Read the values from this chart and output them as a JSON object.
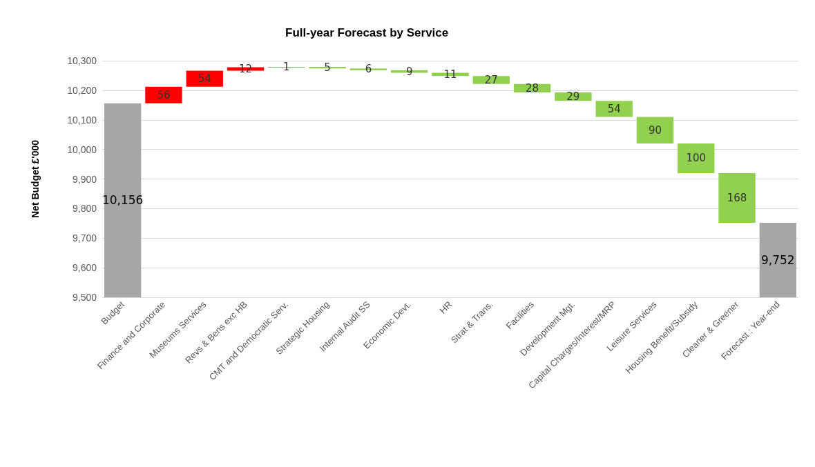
{
  "chart_data": {
    "type": "bar",
    "title": "Full-year Forecast by Service",
    "ylabel": "Net Budget £'000",
    "categories": [
      "Budget",
      "Finance and Corporate",
      "Museums Services",
      "Revs & Bens exc HB",
      "CMT and Democratic Serv.",
      "Strategic Housing",
      "Internal Audit SS",
      "Economic Devt.",
      "HR",
      "Strat & Trans.",
      "Facilities",
      "Development Mgt.",
      "Capital Charges/Interest/MRP",
      "Leisure Services",
      "Housing Benefit/Subsidy",
      "Cleaner & Greener",
      "Forecast : Year-end"
    ],
    "values": [
      10156,
      56,
      54,
      12,
      1,
      5,
      6,
      9,
      11,
      27,
      28,
      29,
      54,
      90,
      100,
      168,
      9752
    ],
    "value_labels": [
      "10,156",
      "56",
      "54",
      "12",
      "1",
      "5",
      "6",
      "9",
      "11",
      "27",
      "28",
      "29",
      "54",
      "90",
      "100",
      "168",
      "9,752"
    ],
    "base": [
      null,
      10156,
      10212,
      10266,
      10278,
      10274,
      10268,
      10259,
      10248,
      10221,
      10193,
      10164,
      10110,
      10020,
      9920,
      9752,
      null
    ],
    "colors": [
      "#a6a6a6",
      "#ff0000",
      "#ff0000",
      "#ff0000",
      "#ff0000",
      "#92d050",
      "#92d050",
      "#92d050",
      "#92d050",
      "#92d050",
      "#92d050",
      "#92d050",
      "#92d050",
      "#92d050",
      "#92d050",
      "#92d050",
      "#a6a6a6"
    ],
    "ylim": [
      9500,
      10300
    ],
    "yticks": [
      {
        "value": 9500,
        "label": "9,500"
      },
      {
        "value": 9600,
        "label": "9,600"
      },
      {
        "value": 9700,
        "label": "9,700"
      },
      {
        "value": 9800,
        "label": "9,800"
      },
      {
        "value": 9900,
        "label": "9,900"
      },
      {
        "value": 10000,
        "label": "10,000"
      },
      {
        "value": 10100,
        "label": "10,100"
      },
      {
        "value": 10200,
        "label": "10,200"
      },
      {
        "value": 10300,
        "label": "10,300"
      }
    ],
    "grid": "y"
  }
}
